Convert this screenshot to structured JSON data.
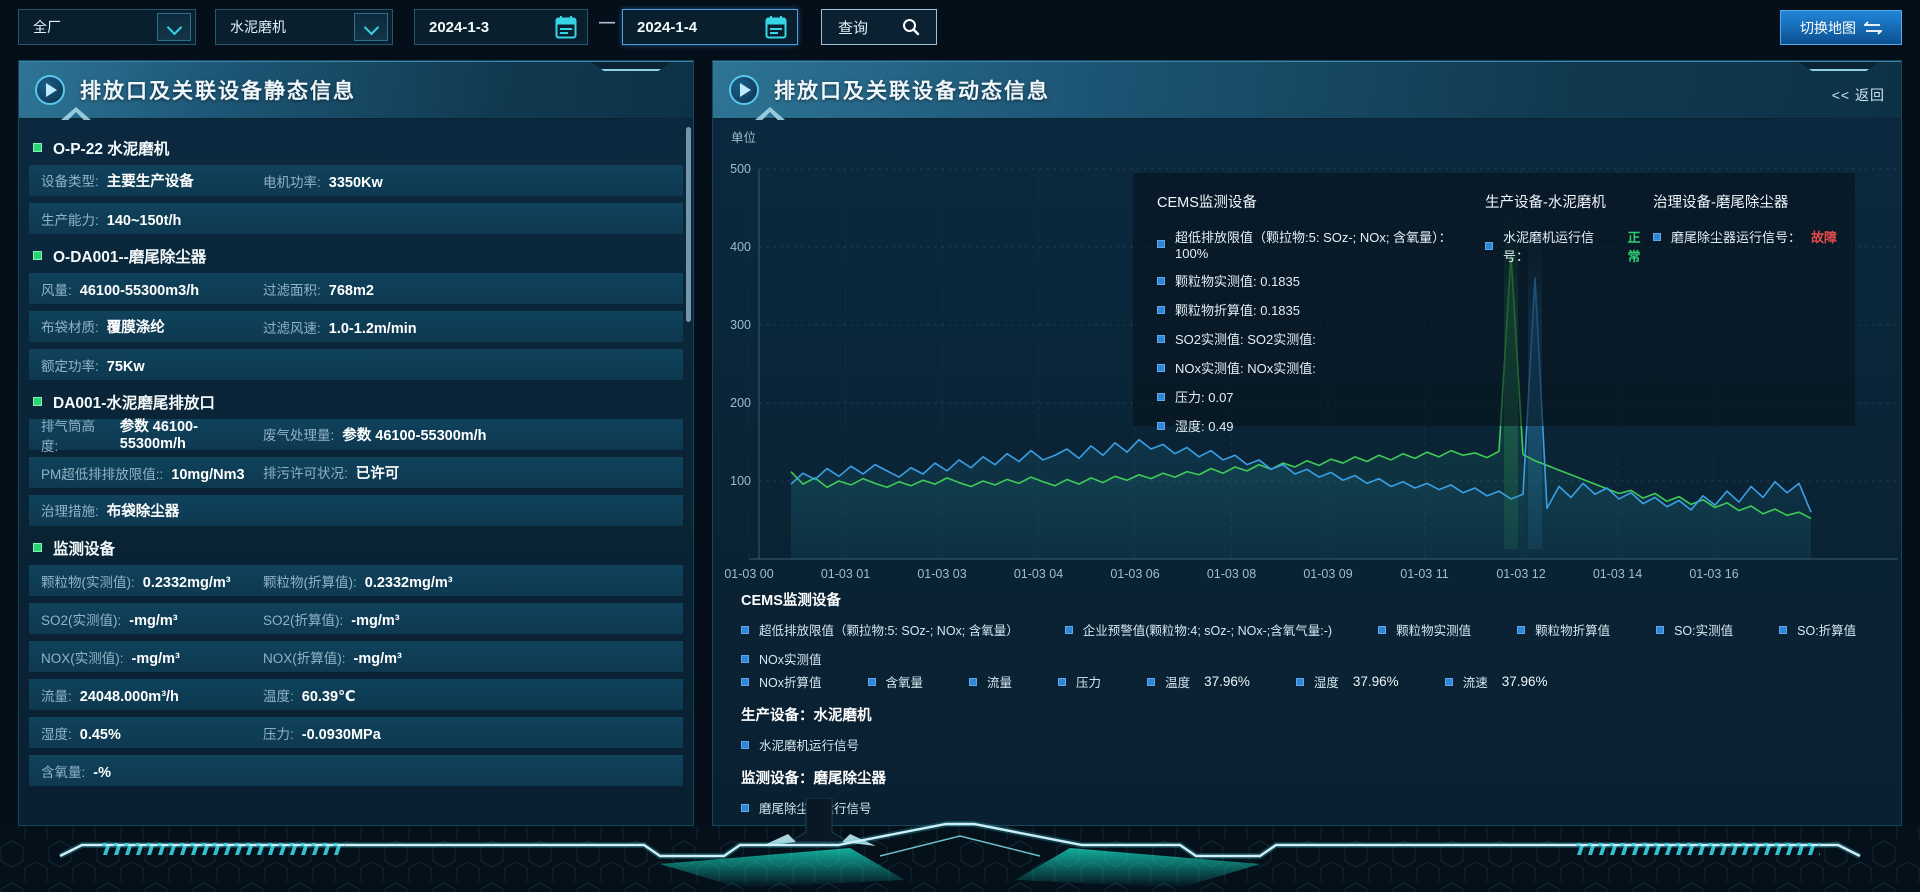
{
  "topbar": {
    "region_select": {
      "value": "全厂"
    },
    "device_select": {
      "value": "水泥磨机"
    },
    "date_start": "2024-1-3",
    "date_separator": "—",
    "date_end": "2024-1-4",
    "query_label": "查询",
    "switch_map_label": "切换地图"
  },
  "left_panel": {
    "title": "排放口及关联设备静态信息",
    "groups": [
      {
        "header": "O-P-22 水泥磨机",
        "rows": [
          [
            {
              "label": "设备类型:",
              "value": "主要生产设备"
            },
            {
              "label": "电机功率:",
              "value": "3350Kw"
            }
          ],
          [
            {
              "label": "生产能力:",
              "value": "140~150t/h"
            }
          ]
        ]
      },
      {
        "header": "O-DA001--磨尾除尘器",
        "rows": [
          [
            {
              "label": "风量:",
              "value": "46100-55300m3/h"
            },
            {
              "label": "过滤面积:",
              "value": "768m2"
            }
          ],
          [
            {
              "label": "布袋材质:",
              "value": "覆膜涤纶"
            },
            {
              "label": "过滤风速:",
              "value": "1.0-1.2m/min"
            }
          ],
          [
            {
              "label": "额定功率:",
              "value": "75Kw"
            }
          ]
        ]
      },
      {
        "header": "DA001-水泥磨尾排放口",
        "rows": [
          [
            {
              "label": "排气筒高度:",
              "value": "参数 46100-55300m/h"
            },
            {
              "label": "废气处理量:",
              "value": "参数 46100-55300m/h"
            }
          ],
          [
            {
              "label": "PM超低排排放限值::",
              "value": "10mg/Nm3"
            },
            {
              "label": "排污许可状况:",
              "value": "已许可"
            }
          ],
          [
            {
              "label": "治理措施:",
              "value": "布袋除尘器"
            }
          ]
        ]
      },
      {
        "header": "监测设备",
        "rows": [
          [
            {
              "label": "颗粒物(实测值):",
              "value": "0.2332mg/m³"
            },
            {
              "label": "颗粒物(折算值):",
              "value": "0.2332mg/m³"
            }
          ],
          [
            {
              "label": "SO2(实测值):",
              "value": "-mg/m³"
            },
            {
              "label": "SO2(折算值):",
              "value": "-mg/m³"
            }
          ],
          [
            {
              "label": "NOX(实测值):",
              "value": "-mg/m³"
            },
            {
              "label": "NOX(折算值):",
              "value": "-mg/m³"
            }
          ],
          [
            {
              "label": "流量:",
              "value": "24048.000m³/h"
            },
            {
              "label": "温度:",
              "value": "60.39℃"
            }
          ],
          [
            {
              "label": "湿度:",
              "value": "0.45%"
            },
            {
              "label": "压力:",
              "value": "-0.0930MPa"
            }
          ],
          [
            {
              "label": "含氧量:",
              "value": "-%"
            }
          ]
        ]
      }
    ]
  },
  "right_panel": {
    "title": "排放口及关联设备动态信息",
    "back_label": "<< 返回",
    "tooltip": {
      "cems": {
        "title": "CEMS监测设备",
        "items": [
          "超低排放限值（颗拉物:5: SOz-; NOx; 含氧量）：    100%",
          "颗粒物实测值: 0.1835",
          "颗粒物折算值: 0.1835",
          "SO2实测值: SO2实测值:",
          "NOx实测值: NOx实测值:",
          "压力: 0.07",
          "湿度: 0.49"
        ]
      },
      "production": {
        "title": "生产设备-水泥磨机",
        "signal_label": "水泥磨机运行信号：",
        "status": "正常",
        "status_color": "#2ecc71"
      },
      "treatment": {
        "title": "治理设备-磨尾除尘器",
        "signal_label": "磨尾除尘器运行信号：",
        "status": "故障",
        "status_color": "#e84b4b"
      }
    },
    "legend": {
      "cems_title": "CEMS监测设备",
      "row1": [
        {
          "label": "超低排放限值（颗拉物:5: SOz-; NOx; 含氧量）",
          "value": ""
        },
        {
          "label": "企业预警值(颗粒物:4; sOz-; NOx-;含氧气量:-)",
          "value": ""
        },
        {
          "label": "颗粒物实测值",
          "value": ""
        },
        {
          "label": "颗粒物折算值",
          "value": ""
        },
        {
          "label": "SO:实测值",
          "value": ""
        },
        {
          "label": "SO:折算值",
          "value": ""
        },
        {
          "label": "NOx实测值",
          "value": ""
        }
      ],
      "row2": [
        {
          "label": "NOx折算值",
          "value": ""
        },
        {
          "label": "含氧量",
          "value": ""
        },
        {
          "label": "流量",
          "value": ""
        },
        {
          "label": "压力",
          "value": ""
        },
        {
          "label": "温度",
          "value": "37.96%"
        },
        {
          "label": "湿度",
          "value": "37.96%"
        },
        {
          "label": "流速",
          "value": "37.96%"
        }
      ],
      "production_title": "生产设备：水泥磨机",
      "production_items": [
        "水泥磨机运行信号"
      ],
      "monitor_title": "监测设备：磨尾除尘器",
      "monitor_items": [
        "磨尾除尘器运行信号"
      ]
    }
  },
  "chart_data": {
    "type": "line",
    "unit_label": "单位",
    "ylim": [
      0,
      500
    ],
    "yticks": [
      100,
      200,
      300,
      400,
      500
    ],
    "grid": "dashed",
    "x_tick_labels": [
      "01-03 00",
      "01-03 01",
      "01-03 03",
      "01-03 04",
      "01-03 06",
      "01-03 08",
      "01-03 09",
      "01-03 11",
      "01-03 12",
      "01-03 14",
      "01-03 16"
    ],
    "series": [
      {
        "name": "green-series",
        "color": "#3fcb57",
        "values": [
          112,
          96,
          104,
          92,
          100,
          95,
          103,
          97,
          92,
          99,
          94,
          101,
          96,
          104,
          98,
          93,
          100,
          95,
          102,
          97,
          105,
          99,
          94,
          102,
          96,
          104,
          98,
          106,
          101,
          108,
          103,
          110,
          105,
          112,
          108,
          116,
          110,
          118,
          113,
          121,
          115,
          123,
          118,
          126,
          120,
          128,
          123,
          131,
          125,
          133,
          127,
          135,
          129,
          137,
          131,
          139,
          133,
          136,
          130,
          138,
          390,
          134,
          126,
          120,
          114,
          108,
          102,
          96,
          90,
          84,
          88,
          78,
          84,
          74,
          80,
          70,
          76,
          66,
          72,
          62,
          68,
          58,
          64,
          56,
          60,
          52
        ]
      },
      {
        "name": "blue-series",
        "color": "#3b9fe6",
        "values": [
          96,
          110,
          102,
          116,
          106,
          119,
          109,
          121,
          113,
          105,
          117,
          109,
          123,
          113,
          127,
          117,
          131,
          121,
          135,
          125,
          139,
          127,
          133,
          141,
          129,
          145,
          133,
          149,
          137,
          153,
          141,
          147,
          135,
          143,
          131,
          139,
          127,
          133,
          121,
          127,
          115,
          121,
          109,
          115,
          105,
          111,
          101,
          107,
          97,
          103,
          93,
          99,
          91,
          97,
          89,
          95,
          85,
          91,
          81,
          87,
          77,
          83,
          360,
          65,
          93,
          79,
          97,
          83,
          91,
          77,
          85,
          71,
          79,
          67,
          75,
          63,
          81,
          69,
          87,
          73,
          93,
          79,
          99,
          85,
          97,
          60
        ]
      }
    ]
  },
  "palette": {
    "accent_cyan": "#35d4e6",
    "status_ok": "#2ecc71",
    "status_fault": "#e84b4b",
    "legend_bullet": "#2d86d8"
  }
}
